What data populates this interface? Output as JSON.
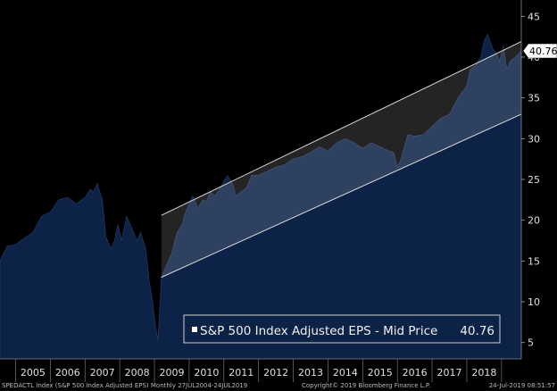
{
  "chart_data": {
    "type": "area",
    "title": "",
    "xlabel": "",
    "ylabel": "",
    "ylim": [
      3,
      47
    ],
    "y_ticks": [
      5,
      10,
      15,
      20,
      25,
      30,
      35,
      40,
      45
    ],
    "x_range": [
      2004.55,
      2019.57
    ],
    "x_tick_labels": [
      "2005",
      "2006",
      "2007",
      "2008",
      "2009",
      "2010",
      "2011",
      "2012",
      "2013",
      "2014",
      "2015",
      "2016",
      "2017",
      "2018"
    ],
    "series": [
      {
        "name": "S&P 500 Index Adjusted EPS - Mid Price",
        "color": "#0d2247",
        "x": [
          2004.55,
          2004.75,
          2005.0,
          2005.25,
          2005.5,
          2005.75,
          2006.0,
          2006.25,
          2006.5,
          2006.75,
          2006.9,
          2007.0,
          2007.15,
          2007.25,
          2007.35,
          2007.5,
          2007.6,
          2007.75,
          2007.85,
          2007.95,
          2008.05,
          2008.2,
          2008.35,
          2008.5,
          2008.6,
          2008.75,
          2008.85,
          2008.95,
          2009.0,
          2009.1,
          2009.2,
          2009.35,
          2009.5,
          2009.65,
          2009.8,
          2009.9,
          2010.0,
          2010.1,
          2010.25,
          2010.4,
          2010.5,
          2010.6,
          2010.75,
          2010.9,
          2011.0,
          2011.1,
          2011.25,
          2011.35,
          2011.5,
          2011.65,
          2011.8,
          2012.0,
          2012.25,
          2012.5,
          2012.75,
          2013.0,
          2013.25,
          2013.5,
          2013.75,
          2014.0,
          2014.25,
          2014.5,
          2014.75,
          2015.0,
          2015.25,
          2015.5,
          2015.75,
          2015.9,
          2016.0,
          2016.1,
          2016.2,
          2016.3,
          2016.5,
          2016.75,
          2017.0,
          2017.25,
          2017.5,
          2017.75,
          2018.0,
          2018.1,
          2018.25,
          2018.4,
          2018.5,
          2018.6,
          2018.75,
          2018.85,
          2018.95,
          2019.05,
          2019.15,
          2019.25,
          2019.4,
          2019.57
        ],
        "values": [
          15.0,
          16.8,
          17.0,
          17.8,
          18.5,
          20.5,
          21.0,
          22.5,
          22.8,
          22.0,
          22.5,
          22.8,
          23.8,
          23.5,
          24.5,
          22.5,
          18.0,
          16.5,
          17.5,
          19.5,
          17.5,
          20.5,
          19.0,
          17.5,
          18.5,
          16.5,
          12.5,
          10.0,
          8.0,
          5.3,
          13.0,
          14.5,
          16.0,
          18.5,
          19.5,
          21.0,
          22.0,
          23.0,
          21.5,
          22.5,
          22.3,
          23.5,
          23.0,
          24.0,
          24.8,
          25.5,
          24.5,
          23.0,
          23.5,
          24.0,
          25.5,
          25.5,
          26.0,
          26.5,
          26.8,
          27.5,
          27.8,
          28.3,
          29.0,
          28.5,
          29.5,
          30.0,
          29.5,
          28.8,
          29.5,
          29.0,
          28.5,
          28.3,
          26.5,
          27.5,
          29.0,
          30.5,
          30.3,
          30.5,
          31.5,
          32.5,
          33.0,
          35.0,
          36.5,
          38.5,
          39.0,
          40.0,
          42.0,
          42.8,
          41.0,
          40.5,
          39.5,
          41.5,
          38.5,
          39.5,
          40.0,
          40.76
        ]
      }
    ],
    "channel": {
      "x0": 2009.2,
      "x1": 2019.57,
      "upper": [
        20.6,
        41.9
      ],
      "lower": [
        13.0,
        33.0
      ]
    },
    "last_value_label": "40.76",
    "legend": {
      "label": "S&P 500 Index Adjusted EPS - Mid Price",
      "value": "40.76",
      "placement": "bottom-right"
    },
    "grid": false
  },
  "footer": {
    "left": "SPEDACTL Index (S&P 500 Index Adjusted EPS)  Monthly 27JUL2004-24JUL2019",
    "center": "Copyright© 2019 Bloomberg Finance L.P.",
    "right": "24-Jul-2019 08:51:57"
  },
  "colors": {
    "background": "#000000",
    "area_fill": "#0d2247",
    "channel_fill": "#ffffff",
    "channel_line": "#d9d9d9",
    "axis_text": "#e0e0e0"
  }
}
